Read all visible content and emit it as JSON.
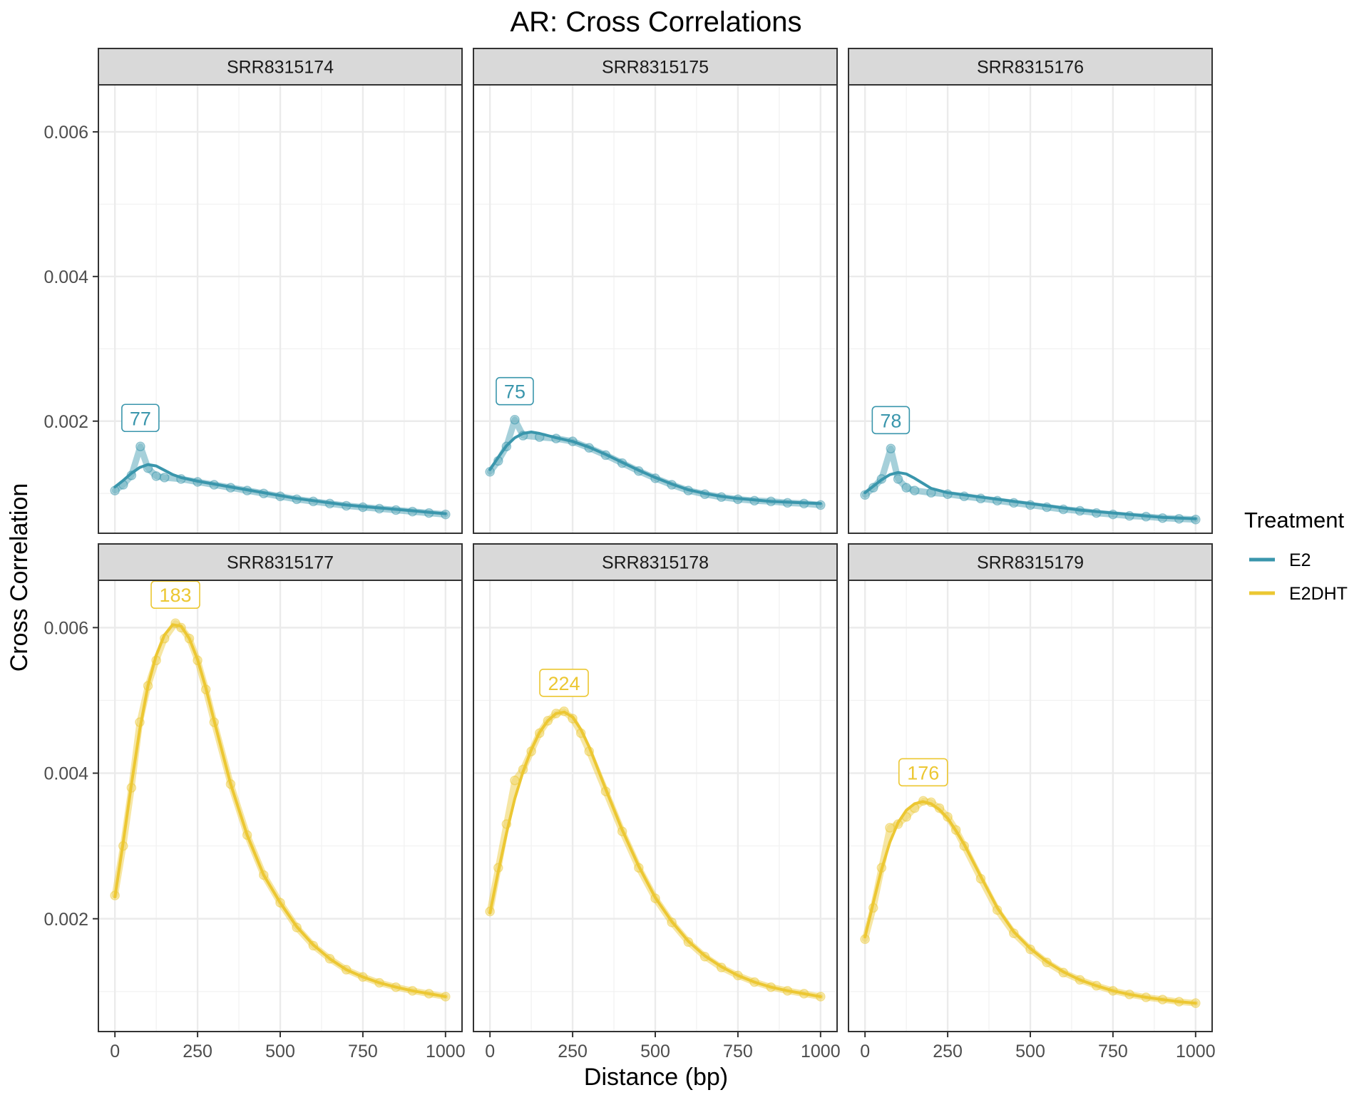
{
  "chart_data": {
    "type": "line",
    "title": "AR: Cross Correlations",
    "xlabel": "Distance (bp)",
    "ylabel": "Cross Correlation",
    "xlim": [
      -50,
      1050
    ],
    "ylim": [
      0.00045,
      0.00665
    ],
    "x_ticks": [
      0,
      250,
      500,
      750,
      1000
    ],
    "x_tick_labels": [
      "0",
      "250",
      "500",
      "750",
      "1000"
    ],
    "y_ticks": [
      0.002,
      0.004,
      0.006
    ],
    "y_tick_labels": [
      "0.002",
      "0.004",
      "0.006"
    ],
    "grid": true,
    "legend": {
      "title": "Treatment",
      "position": "right",
      "entries": [
        {
          "label": "E2",
          "color": "#3a96ac"
        },
        {
          "label": "E2DHT",
          "color": "#ecc732"
        }
      ]
    },
    "panels": [
      {
        "title": "SRR8315174",
        "treatment": "E2",
        "peak_label": "77",
        "peak_x": 77,
        "peak_y": 0.00165,
        "x": [
          0,
          25,
          50,
          77,
          100,
          125,
          150,
          200,
          250,
          300,
          350,
          400,
          450,
          500,
          550,
          600,
          650,
          700,
          750,
          800,
          850,
          900,
          950,
          1000
        ],
        "y": [
          0.00104,
          0.00112,
          0.00125,
          0.00165,
          0.00135,
          0.00124,
          0.00122,
          0.0012,
          0.00116,
          0.00112,
          0.00108,
          0.00104,
          0.001,
          0.00096,
          0.00092,
          0.00089,
          0.00086,
          0.00083,
          0.00081,
          0.00079,
          0.00077,
          0.00075,
          0.00073,
          0.00071
        ],
        "fit_x": [
          0,
          25,
          50,
          75,
          100,
          125,
          150,
          175,
          200,
          250,
          300,
          350,
          400,
          450,
          500,
          550,
          600,
          650,
          700,
          750,
          800,
          850,
          900,
          950,
          1000
        ],
        "fit_y": [
          0.00109,
          0.00118,
          0.00128,
          0.00136,
          0.0014,
          0.00138,
          0.00132,
          0.00126,
          0.00122,
          0.00117,
          0.00113,
          0.00109,
          0.00105,
          0.00101,
          0.00097,
          0.00093,
          0.0009,
          0.00087,
          0.00084,
          0.00082,
          0.0008,
          0.00078,
          0.00076,
          0.00074,
          0.00072
        ]
      },
      {
        "title": "SRR8315175",
        "treatment": "E2",
        "peak_label": "75",
        "peak_x": 75,
        "peak_y": 0.00202,
        "x": [
          0,
          25,
          50,
          75,
          100,
          150,
          200,
          250,
          300,
          350,
          400,
          450,
          500,
          550,
          600,
          650,
          700,
          750,
          800,
          850,
          900,
          950,
          1000
        ],
        "y": [
          0.0013,
          0.00145,
          0.00165,
          0.00202,
          0.0018,
          0.00178,
          0.00176,
          0.00172,
          0.00163,
          0.00153,
          0.00142,
          0.00131,
          0.00121,
          0.00112,
          0.00104,
          0.00099,
          0.00095,
          0.00092,
          0.0009,
          0.00089,
          0.00087,
          0.00086,
          0.00084
        ],
        "fit_x": [
          0,
          25,
          50,
          75,
          100,
          125,
          150,
          175,
          200,
          250,
          300,
          350,
          400,
          450,
          500,
          550,
          600,
          650,
          700,
          750,
          800,
          850,
          900,
          950,
          1000
        ],
        "fit_y": [
          0.00133,
          0.0015,
          0.00166,
          0.00177,
          0.00183,
          0.00185,
          0.00183,
          0.0018,
          0.00177,
          0.00172,
          0.00164,
          0.00154,
          0.00143,
          0.00132,
          0.00122,
          0.00113,
          0.00105,
          0.001,
          0.00096,
          0.00093,
          0.00091,
          0.00089,
          0.00088,
          0.00087,
          0.00086
        ]
      },
      {
        "title": "SRR8315176",
        "treatment": "E2",
        "peak_label": "78",
        "peak_x": 78,
        "peak_y": 0.00162,
        "x": [
          0,
          25,
          50,
          78,
          100,
          125,
          150,
          200,
          250,
          300,
          350,
          400,
          450,
          500,
          550,
          600,
          650,
          700,
          750,
          800,
          850,
          900,
          950,
          1000
        ],
        "y": [
          0.00098,
          0.00108,
          0.0012,
          0.00162,
          0.0012,
          0.00108,
          0.00104,
          0.00101,
          0.00099,
          0.00096,
          0.00093,
          0.0009,
          0.00087,
          0.00084,
          0.00081,
          0.00078,
          0.00076,
          0.00073,
          0.00071,
          0.00069,
          0.00068,
          0.00066,
          0.00065,
          0.00064
        ],
        "fit_x": [
          0,
          25,
          50,
          75,
          100,
          125,
          150,
          175,
          200,
          250,
          300,
          350,
          400,
          450,
          500,
          550,
          600,
          650,
          700,
          750,
          800,
          850,
          900,
          950,
          1000
        ],
        "fit_y": [
          0.00101,
          0.0011,
          0.00119,
          0.00126,
          0.00129,
          0.00127,
          0.00121,
          0.00114,
          0.00107,
          0.00101,
          0.00098,
          0.00095,
          0.00092,
          0.00089,
          0.00086,
          0.00083,
          0.0008,
          0.00077,
          0.00075,
          0.00073,
          0.00071,
          0.00069,
          0.00067,
          0.00066,
          0.00065
        ]
      },
      {
        "title": "SRR8315177",
        "treatment": "E2DHT",
        "peak_label": "183",
        "peak_x": 183,
        "peak_y": 0.00606,
        "x": [
          0,
          25,
          50,
          75,
          100,
          125,
          150,
          183,
          200,
          225,
          250,
          275,
          300,
          350,
          400,
          450,
          500,
          550,
          600,
          650,
          700,
          750,
          800,
          850,
          900,
          950,
          1000
        ],
        "y": [
          0.00232,
          0.003,
          0.0038,
          0.0047,
          0.0052,
          0.00555,
          0.00585,
          0.00606,
          0.006,
          0.00585,
          0.00555,
          0.00515,
          0.0047,
          0.00385,
          0.00315,
          0.0026,
          0.00222,
          0.00188,
          0.00163,
          0.00145,
          0.0013,
          0.0012,
          0.00112,
          0.00106,
          0.00101,
          0.00097,
          0.00093
        ],
        "fit_x": [
          0,
          25,
          50,
          75,
          100,
          125,
          150,
          175,
          200,
          225,
          250,
          275,
          300,
          350,
          400,
          450,
          500,
          550,
          600,
          650,
          700,
          750,
          800,
          850,
          900,
          950,
          1000
        ],
        "fit_y": [
          0.0023,
          0.00305,
          0.00385,
          0.0046,
          0.0052,
          0.00562,
          0.0059,
          0.00604,
          0.00602,
          0.00585,
          0.00556,
          0.00517,
          0.00472,
          0.00385,
          0.00315,
          0.0026,
          0.00222,
          0.00189,
          0.00164,
          0.00145,
          0.0013,
          0.0012,
          0.00112,
          0.00106,
          0.00101,
          0.00097,
          0.00093
        ]
      },
      {
        "title": "SRR8315178",
        "treatment": "E2DHT",
        "peak_label": "224",
        "peak_x": 224,
        "peak_y": 0.00485,
        "x": [
          0,
          25,
          50,
          75,
          100,
          125,
          150,
          175,
          200,
          224,
          250,
          275,
          300,
          350,
          400,
          450,
          500,
          550,
          600,
          650,
          700,
          750,
          800,
          850,
          900,
          950,
          1000
        ],
        "y": [
          0.0021,
          0.0027,
          0.0033,
          0.0039,
          0.00405,
          0.0043,
          0.00455,
          0.00472,
          0.00482,
          0.00485,
          0.00475,
          0.00455,
          0.0043,
          0.00375,
          0.0032,
          0.0027,
          0.00228,
          0.00195,
          0.00168,
          0.00148,
          0.00133,
          0.00122,
          0.00113,
          0.00106,
          0.00101,
          0.00097,
          0.00093
        ],
        "fit_x": [
          0,
          25,
          50,
          75,
          100,
          125,
          150,
          175,
          200,
          225,
          250,
          275,
          300,
          350,
          400,
          450,
          500,
          550,
          600,
          650,
          700,
          750,
          800,
          850,
          900,
          950,
          1000
        ],
        "fit_y": [
          0.00208,
          0.00265,
          0.00318,
          0.00365,
          0.00402,
          0.00432,
          0.00456,
          0.00472,
          0.00482,
          0.00484,
          0.00477,
          0.0046,
          0.00436,
          0.00378,
          0.00322,
          0.00272,
          0.00229,
          0.00196,
          0.00169,
          0.00149,
          0.00134,
          0.00122,
          0.00113,
          0.00106,
          0.00101,
          0.00097,
          0.00093
        ]
      },
      {
        "title": "SRR8315179",
        "treatment": "E2DHT",
        "peak_label": "176",
        "peak_x": 176,
        "peak_y": 0.00362,
        "x": [
          0,
          25,
          50,
          75,
          100,
          125,
          150,
          176,
          200,
          225,
          250,
          275,
          300,
          350,
          400,
          450,
          500,
          550,
          600,
          650,
          700,
          750,
          800,
          850,
          900,
          950,
          1000
        ],
        "y": [
          0.00172,
          0.00215,
          0.0027,
          0.00325,
          0.0033,
          0.0034,
          0.00352,
          0.00362,
          0.0036,
          0.00352,
          0.0034,
          0.00322,
          0.003,
          0.00255,
          0.00212,
          0.0018,
          0.00158,
          0.0014,
          0.00126,
          0.00116,
          0.00108,
          0.00101,
          0.00096,
          0.00092,
          0.00089,
          0.00086,
          0.00084
        ],
        "fit_x": [
          0,
          25,
          50,
          75,
          100,
          125,
          150,
          175,
          200,
          225,
          250,
          275,
          300,
          350,
          400,
          450,
          500,
          550,
          600,
          650,
          700,
          750,
          800,
          850,
          900,
          950,
          1000
        ],
        "fit_y": [
          0.00175,
          0.00222,
          0.00268,
          0.00305,
          0.00332,
          0.00349,
          0.00358,
          0.00361,
          0.00358,
          0.0035,
          0.00338,
          0.00321,
          0.00302,
          0.00258,
          0.00215,
          0.00182,
          0.00159,
          0.00141,
          0.00127,
          0.00116,
          0.00108,
          0.00101,
          0.00096,
          0.00092,
          0.00089,
          0.00086,
          0.00084
        ]
      }
    ]
  }
}
